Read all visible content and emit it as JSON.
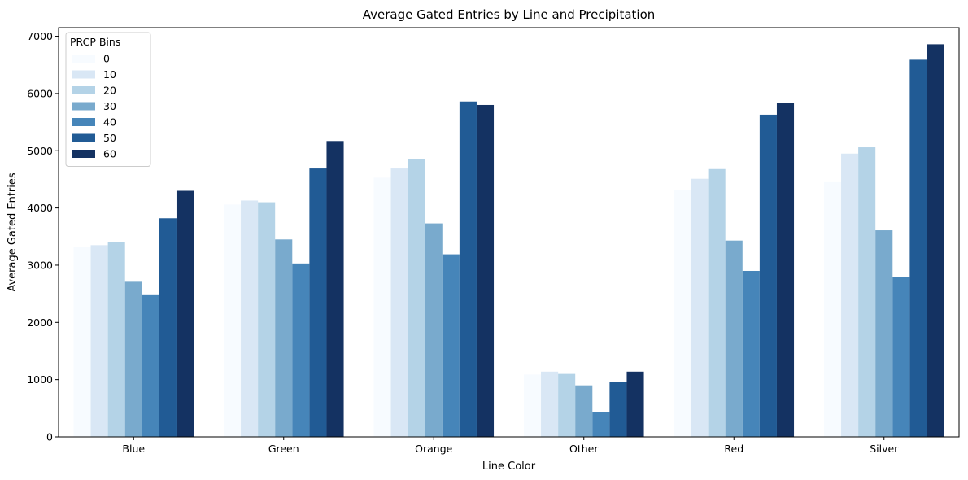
{
  "chart_data": {
    "type": "bar",
    "title": "Average Gated Entries by Line and Precipitation",
    "xlabel": "Line Color",
    "ylabel": "Average Gated Entries",
    "categories": [
      "Blue",
      "Green",
      "Orange",
      "Other",
      "Red",
      "Silver"
    ],
    "ylim": [
      0,
      7150
    ],
    "yticks": [
      0,
      1000,
      2000,
      3000,
      4000,
      5000,
      6000,
      7000
    ],
    "yticks_text": [
      "0",
      "1000",
      "2000",
      "3000",
      "4000",
      "5000",
      "6000",
      "7000"
    ],
    "grid": false,
    "legend": {
      "title": "PRCP Bins",
      "placement": "top-left"
    },
    "series": [
      {
        "name": "0",
        "color": "#f7fbff",
        "values": [
          3320,
          4060,
          4530,
          1090,
          4310,
          4450
        ]
      },
      {
        "name": "10",
        "color": "#d9e7f5",
        "values": [
          3350,
          4130,
          4690,
          1140,
          4510,
          4950
        ]
      },
      {
        "name": "20",
        "color": "#b4d3e7",
        "values": [
          3400,
          4100,
          4860,
          1100,
          4680,
          5060
        ]
      },
      {
        "name": "30",
        "color": "#79aacd",
        "values": [
          2710,
          3450,
          3730,
          900,
          3430,
          3610
        ]
      },
      {
        "name": "40",
        "color": "#4685b9",
        "values": [
          2490,
          3030,
          3190,
          440,
          2900,
          2790
        ]
      },
      {
        "name": "50",
        "color": "#215b95",
        "values": [
          3820,
          4690,
          5860,
          960,
          5630,
          6590
        ]
      },
      {
        "name": "60",
        "color": "#143262",
        "values": [
          4300,
          5170,
          5800,
          1140,
          5830,
          6860
        ]
      }
    ]
  }
}
